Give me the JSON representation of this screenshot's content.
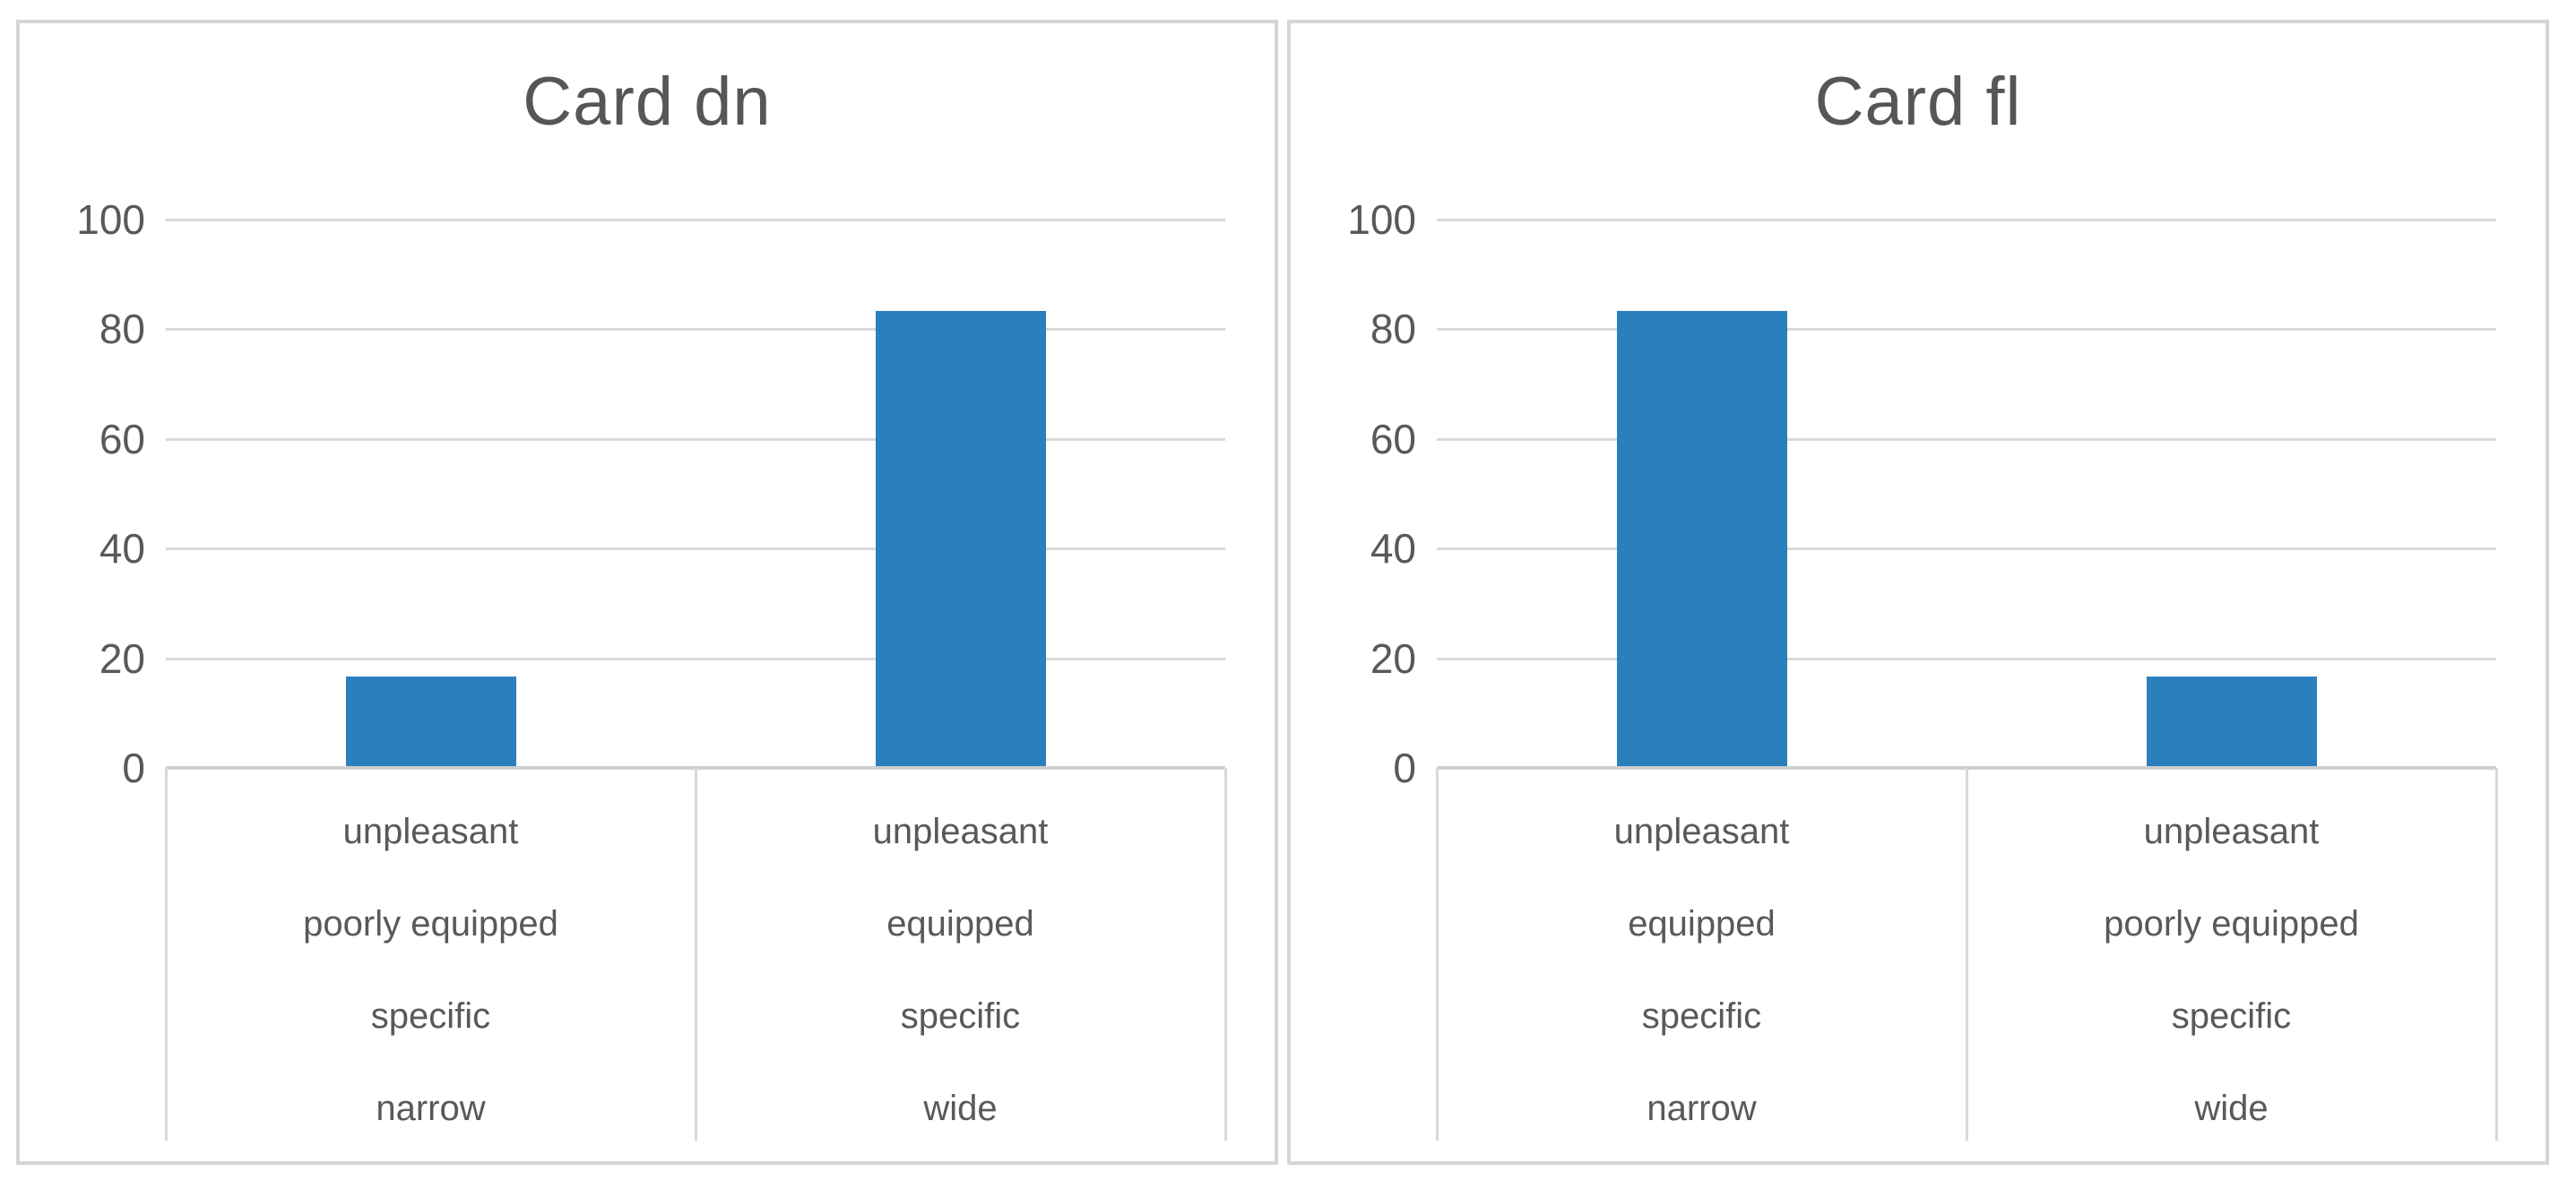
{
  "colors": {
    "bar": "#2b7fbd",
    "grid": "#d9d9d9",
    "axis": "#cfcfcf",
    "panel_border": "#d6d6d6",
    "text": "#595959",
    "title_text": "#565656",
    "background": "#ffffff"
  },
  "chart_data": [
    {
      "type": "bar",
      "title": "Card dn",
      "categories": [
        [
          "unpleasant",
          "poorly equipped",
          "specific",
          "narrow"
        ],
        [
          "unpleasant",
          "equipped",
          "specific",
          "wide"
        ]
      ],
      "values": [
        16.7,
        83.3
      ],
      "xlabel": "",
      "ylabel": "",
      "ylim": [
        0,
        100
      ],
      "yticks": [
        0,
        20,
        40,
        60,
        80,
        100
      ],
      "grid": true,
      "legend": "none",
      "bar_color": "#2b7fbd"
    },
    {
      "type": "bar",
      "title": "Card fl",
      "categories": [
        [
          "unpleasant",
          "equipped",
          "specific",
          "narrow"
        ],
        [
          "unpleasant",
          "poorly equipped",
          "specific",
          "wide"
        ]
      ],
      "values": [
        83.3,
        16.7
      ],
      "xlabel": "",
      "ylabel": "",
      "ylim": [
        0,
        100
      ],
      "yticks": [
        0,
        20,
        40,
        60,
        80,
        100
      ],
      "grid": true,
      "legend": "none",
      "bar_color": "#2b7fbd"
    }
  ]
}
